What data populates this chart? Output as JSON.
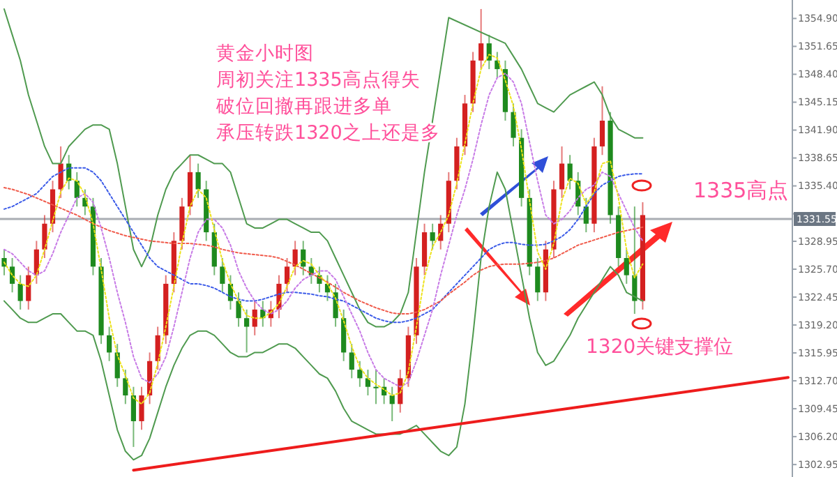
{
  "chart_data": {
    "type": "candlestick",
    "tick_labels": "y",
    "grid": false,
    "categories": [
      null,
      null,
      null,
      null,
      null,
      null,
      null,
      null,
      null,
      null,
      null,
      null,
      null,
      null,
      null,
      null,
      null,
      null,
      null,
      null,
      null,
      null,
      null,
      null,
      null,
      null,
      null,
      null,
      null,
      null,
      null,
      null,
      null,
      null,
      null,
      null,
      null,
      null,
      null,
      null,
      null,
      null,
      null,
      null,
      null,
      null,
      null,
      null,
      null,
      null,
      null,
      null,
      null,
      null,
      null,
      null,
      null,
      null,
      null,
      null,
      null,
      null,
      null,
      null,
      null,
      null,
      null,
      null,
      null,
      null,
      null,
      null,
      null,
      null,
      null,
      null,
      null,
      null,
      null,
      null,
      null,
      null,
      null,
      null,
      null,
      null,
      null,
      null,
      null,
      null,
      null,
      null,
      null,
      null,
      null,
      null,
      null,
      null
    ],
    "ohlc": [
      [
        1327,
        1328,
        1325,
        1326
      ],
      [
        1326,
        1327,
        1323,
        1324
      ],
      [
        1324,
        1325,
        1321,
        1322
      ],
      [
        1322,
        1326,
        1321,
        1325
      ],
      [
        1325,
        1329,
        1324,
        1328
      ],
      [
        1328,
        1332,
        1327,
        1331
      ],
      [
        1331,
        1336,
        1330,
        1335
      ],
      [
        1335,
        1340,
        1334,
        1338
      ],
      [
        1338,
        1339,
        1335,
        1336
      ],
      [
        1336,
        1337,
        1333,
        1334
      ],
      [
        1334,
        1335,
        1332,
        1333
      ],
      [
        1333,
        1334,
        1325,
        1326
      ],
      [
        1326,
        1327,
        1317,
        1318
      ],
      [
        1318,
        1319,
        1315,
        1316
      ],
      [
        1316,
        1317,
        1312,
        1313
      ],
      [
        1313,
        1314,
        1310,
        1311
      ],
      [
        1311,
        1312,
        1305,
        1308
      ],
      [
        1308,
        1312,
        1307,
        1311
      ],
      [
        1311,
        1316,
        1310,
        1315
      ],
      [
        1315,
        1319,
        1314,
        1318
      ],
      [
        1318,
        1325,
        1317,
        1324
      ],
      [
        1324,
        1330,
        1323,
        1329
      ],
      [
        1329,
        1334,
        1328,
        1333
      ],
      [
        1333,
        1339,
        1332,
        1337
      ],
      [
        1337,
        1338,
        1334,
        1335
      ],
      [
        1335,
        1336,
        1329,
        1330
      ],
      [
        1330,
        1331,
        1325,
        1326
      ],
      [
        1326,
        1327,
        1323,
        1324
      ],
      [
        1324,
        1325,
        1321,
        1322
      ],
      [
        1322,
        1323,
        1319,
        1320
      ],
      [
        1320,
        1321,
        1316,
        1319
      ],
      [
        1319,
        1322,
        1318,
        1321
      ],
      [
        1321,
        1322,
        1319,
        1320
      ],
      [
        1320,
        1322,
        1319,
        1321
      ],
      [
        1321,
        1325,
        1320,
        1324
      ],
      [
        1324,
        1327,
        1323,
        1326
      ],
      [
        1326,
        1329,
        1325,
        1328
      ],
      [
        1328,
        1329,
        1325,
        1326
      ],
      [
        1326,
        1327,
        1324,
        1325
      ],
      [
        1325,
        1326,
        1323,
        1324
      ],
      [
        1324,
        1325,
        1322,
        1323
      ],
      [
        1323,
        1324,
        1319,
        1320
      ],
      [
        1320,
        1321,
        1315,
        1316
      ],
      [
        1316,
        1317,
        1313,
        1314
      ],
      [
        1314,
        1315,
        1312,
        1313
      ],
      [
        1313,
        1314,
        1311,
        1312
      ],
      [
        1312,
        1314,
        1310,
        1312
      ],
      [
        1312,
        1313,
        1310,
        1311
      ],
      [
        1311,
        1312,
        1308,
        1310
      ],
      [
        1310,
        1314,
        1309,
        1313
      ],
      [
        1313,
        1319,
        1312,
        1318
      ],
      [
        1318,
        1327,
        1317,
        1326
      ],
      [
        1326,
        1331,
        1325,
        1330
      ],
      [
        1330,
        1331,
        1328,
        1329
      ],
      [
        1329,
        1332,
        1328,
        1331
      ],
      [
        1331,
        1337,
        1330,
        1336
      ],
      [
        1336,
        1341,
        1335,
        1340
      ],
      [
        1340,
        1346,
        1339,
        1345
      ],
      [
        1345,
        1351,
        1344,
        1350
      ],
      [
        1350,
        1356,
        1349,
        1352
      ],
      [
        1352,
        1353,
        1349,
        1350
      ],
      [
        1350,
        1351,
        1348,
        1349
      ],
      [
        1349,
        1350,
        1343,
        1344
      ],
      [
        1344,
        1345,
        1340,
        1341
      ],
      [
        1341,
        1342,
        1333,
        1334
      ],
      [
        1334,
        1335,
        1325,
        1326
      ],
      [
        1326,
        1327,
        1322,
        1323
      ],
      [
        1323,
        1329,
        1322,
        1328
      ],
      [
        1328,
        1336,
        1327,
        1335
      ],
      [
        1335,
        1340,
        1334,
        1338
      ],
      [
        1338,
        1339,
        1335,
        1336
      ],
      [
        1336,
        1337,
        1332,
        1333
      ],
      [
        1333,
        1334,
        1330,
        1331
      ],
      [
        1331,
        1341,
        1330,
        1340
      ],
      [
        1340,
        1347,
        1339,
        1343
      ],
      [
        1343,
        1344,
        1331,
        1332
      ],
      [
        1332,
        1333,
        1326,
        1327
      ],
      [
        1327,
        1328,
        1324,
        1325
      ],
      [
        1325,
        1333,
        1320.5,
        1322
      ],
      [
        1322,
        1333.5,
        1321,
        1332
      ],
      null,
      null,
      null,
      null,
      null,
      null,
      null,
      null,
      null,
      null,
      null,
      null,
      null,
      null,
      null,
      null,
      null,
      null
    ],
    "colors": [
      "#1e8a1e",
      "#1e8a1e",
      "#1e8a1e",
      "#d42020",
      "#d42020",
      "#d42020",
      "#d42020",
      "#d42020",
      "#1e8a1e",
      "#1e8a1e",
      "#1e8a1e",
      "#1e8a1e",
      "#1e8a1e",
      "#1e8a1e",
      "#1e8a1e",
      "#1e8a1e",
      "#1e8a1e",
      "#d42020",
      "#d42020",
      "#d42020",
      "#d42020",
      "#d42020",
      "#d42020",
      "#d42020",
      "#1e8a1e",
      "#1e8a1e",
      "#1e8a1e",
      "#1e8a1e",
      "#1e8a1e",
      "#1e8a1e",
      "#1e8a1e",
      "#d42020",
      "#1e8a1e",
      "#d42020",
      "#d42020",
      "#d42020",
      "#d42020",
      "#1e8a1e",
      "#1e8a1e",
      "#1e8a1e",
      "#1e8a1e",
      "#1e8a1e",
      "#1e8a1e",
      "#1e8a1e",
      "#1e8a1e",
      "#1e8a1e",
      "#1e8a1e",
      "#1e8a1e",
      "#1e8a1e",
      "#d42020",
      "#d42020",
      "#d42020",
      "#d42020",
      "#1e8a1e",
      "#d42020",
      "#d42020",
      "#d42020",
      "#d42020",
      "#d42020",
      "#d42020",
      "#1e8a1e",
      "#1e8a1e",
      "#1e8a1e",
      "#1e8a1e",
      "#1e8a1e",
      "#1e8a1e",
      "#1e8a1e",
      "#d42020",
      "#d42020",
      "#d42020",
      "#1e8a1e",
      "#1e8a1e",
      "#1e8a1e",
      "#d42020",
      "#d42020",
      "#1e8a1e",
      "#1e8a1e",
      "#1e8a1e",
      "#1e8a1e",
      "#d42020",
      null,
      null,
      null,
      null,
      null,
      null,
      null,
      null,
      null,
      null,
      null,
      null,
      null,
      null,
      null,
      null,
      null,
      null
    ],
    "series": [
      {
        "type": "line",
        "color": "#4f9a4f",
        "line_style": "solid",
        "values": [
          1356,
          1353,
          1350,
          1346,
          1343,
          1340,
          1338,
          1338,
          1340,
          1341,
          1342,
          1342.5,
          1342.5,
          1342,
          1338,
          1333,
          1328,
          1326,
          1328,
          1332,
          1335,
          1337,
          1338,
          1339,
          1339,
          1338.5,
          1338,
          1338,
          1337,
          1334,
          1331,
          1330.5,
          1330.5,
          1331,
          1331.5,
          1331.5,
          1331,
          1330.5,
          1330,
          1330,
          1329,
          1327,
          1325,
          1323,
          1321,
          1319.5,
          1319,
          1319,
          1319.5,
          1320.5,
          1323,
          1330,
          1337,
          1343,
          1349,
          1355,
          null,
          null,
          null,
          null,
          null,
          null,
          1352,
          1350.5,
          1349,
          1347,
          1345,
          1344.5,
          1344,
          1345,
          1346,
          1346.5,
          1347,
          1347.5,
          1346,
          1343.5,
          1342,
          1341.5,
          1341,
          1341,
          null,
          null,
          null,
          null,
          null,
          null,
          null,
          null,
          null,
          null,
          null,
          null,
          null,
          null,
          null,
          null,
          null,
          null
        ]
      },
      {
        "type": "line",
        "color": "#4f9a4f",
        "line_style": "solid",
        "values": [
          1322,
          1321,
          1320,
          1319.5,
          1319.5,
          1320,
          1320.5,
          1320.5,
          1319.5,
          1318.5,
          1318.5,
          1318,
          1315,
          1311,
          1307,
          1304.5,
          1303.5,
          1304,
          1306,
          1309,
          1312,
          1314.5,
          1316.5,
          1318,
          1318.5,
          1318.5,
          1318,
          1317,
          1316,
          1315.5,
          1315.5,
          1316,
          1316,
          1316.5,
          1317,
          1317,
          1316.5,
          1315.5,
          1314.5,
          1313.5,
          1313,
          1311.5,
          1309.5,
          1308,
          1307.5,
          1307,
          1306.5,
          1306.5,
          1306.5,
          1306.5,
          1307,
          1307.5,
          1306.5,
          1305.5,
          1304.5,
          1304,
          1305,
          1310,
          1318,
          1327,
          1333,
          1337,
          1335,
          1330,
          1325,
          1320,
          1316,
          1314.5,
          1315,
          1316.5,
          1318,
          1320,
          1321.5,
          1323,
          1324.5,
          1326,
          1325,
          1323,
          1322.5,
          1322,
          null,
          null,
          null,
          null,
          null,
          null,
          null,
          null,
          null,
          null,
          null,
          null,
          null,
          null,
          null,
          null,
          null,
          null
        ]
      },
      {
        "type": "line",
        "color": "#3a5ae8",
        "line_style": "dotted",
        "values": [
          1332.7,
          1333,
          1333.5,
          1334,
          1334.5,
          1335.5,
          1336.5,
          1337,
          1337.5,
          1337.5,
          1337.5,
          1337,
          1336,
          1334.5,
          1333,
          1331.5,
          1330,
          1328.5,
          1327,
          1326,
          1325.5,
          1325,
          1324.5,
          1324,
          1324,
          1323.8,
          1323.5,
          1323,
          1322.5,
          1322.2,
          1322,
          1322,
          1322.2,
          1322.5,
          1322.8,
          1323,
          1323,
          1322.9,
          1322.8,
          1322.6,
          1322.5,
          1322.2,
          1322,
          1321.5,
          1321,
          1320.5,
          1320,
          1319.7,
          1319.5,
          1319.5,
          1319.7,
          1320,
          1320.5,
          1321,
          1322,
          1323,
          1324,
          1325,
          1326,
          1327,
          1328,
          1328.5,
          1328.8,
          1328.8,
          1328.6,
          1328.5,
          1328.5,
          1328.6,
          1329,
          1329.5,
          1330.3,
          1331.5,
          1333,
          1334.5,
          1335.5,
          1336,
          1336.5,
          1336.7,
          1336.8,
          1336.8,
          null,
          null,
          null,
          null,
          null,
          null,
          null,
          null,
          null,
          null,
          null,
          null,
          null,
          null,
          null,
          null,
          null,
          null
        ]
      },
      {
        "type": "line",
        "color": "#f05a4a",
        "line_style": "dotted",
        "values": [
          1335.2,
          1335,
          1334.7,
          1334.4,
          1334,
          1333.6,
          1333.2,
          1332.8,
          1332.4,
          1332,
          1331.5,
          1331,
          1330.6,
          1330.2,
          1329.9,
          1329.6,
          1329.4,
          1329.2,
          1329,
          1328.9,
          1328.8,
          1328.7,
          1328.7,
          1328.7,
          1328.6,
          1328.5,
          1328.3,
          1328,
          1327.8,
          1327.6,
          1327.5,
          1327.4,
          1327.3,
          1327.2,
          1327,
          1326.6,
          1326.2,
          1325.7,
          1325.2,
          1324.7,
          1324.2,
          1323.6,
          1323,
          1322.5,
          1322,
          1321.6,
          1321.2,
          1320.9,
          1320.6,
          1320.5,
          1320.5,
          1320.7,
          1321,
          1321.5,
          1322,
          1322.8,
          1323.5,
          1324.2,
          1325,
          1325.6,
          1326,
          1326.2,
          1326.3,
          1326.3,
          1326.3,
          1326.4,
          1326.5,
          1326.7,
          1327,
          1327.5,
          1328,
          1328.5,
          1328.8,
          1329.1,
          1329.4,
          1329.7,
          1330,
          1330.2,
          1330.4,
          1330.6,
          null,
          null,
          null,
          null,
          null,
          null,
          null,
          null,
          null,
          null,
          null,
          null,
          null,
          null,
          null,
          null,
          null,
          null
        ]
      },
      {
        "type": "line",
        "color": "#c77ae6",
        "line_style": "dotted",
        "values": [
          1328,
          1327.5,
          1326.5,
          1325.5,
          1325,
          1325.5,
          1327.5,
          1330,
          1332,
          1334,
          1334.5,
          1333.5,
          1330.5,
          1327,
          1323,
          1319.5,
          1315.5,
          1313,
          1312.5,
          1313.5,
          1315.5,
          1319,
          1323,
          1327,
          1330,
          1331.5,
          1331.5,
          1330.5,
          1328.5,
          1325.5,
          1323.5,
          1322,
          1321,
          1320.5,
          1321,
          1322,
          1323.5,
          1324.5,
          1325,
          1325.5,
          1325.5,
          1324.5,
          1322.5,
          1320.5,
          1318.5,
          1316,
          1314,
          1313,
          1312.5,
          1312,
          1312.5,
          1315,
          1318,
          1321,
          1325,
          1328.5,
          1332,
          1335,
          1338.5,
          1342.5,
          1346,
          1348,
          1348.5,
          1347.5,
          1345,
          1340.5,
          1336,
          1332,
          1331,
          1331.5,
          1332.5,
          1334,
          1335,
          1335.5,
          1337,
          1336.5,
          1334.5,
          1332.5,
          1330.5,
          1329,
          null,
          null,
          null,
          null,
          null,
          null,
          null,
          null,
          null,
          null,
          null,
          null,
          null,
          null,
          null,
          null,
          null,
          null
        ]
      },
      {
        "type": "line",
        "color": "#ede21a",
        "line_style": "dotted",
        "values": [
          1326.5,
          1325,
          1324,
          1323.7,
          1325,
          1328,
          1331.3,
          1334.7,
          1336.3,
          1336,
          1334.3,
          1331,
          1325.7,
          1320,
          1315.7,
          1313.3,
          1310.7,
          1310,
          1311.3,
          1314.7,
          1319,
          1323.7,
          1328.7,
          1333,
          1335,
          1334,
          1330.3,
          1326.7,
          1324,
          1322,
          1320.3,
          1320,
          1320,
          1320.7,
          1321.7,
          1323.7,
          1326,
          1326.7,
          1326.3,
          1325,
          1324,
          1322.3,
          1319.7,
          1316.7,
          1314.3,
          1313,
          1312.3,
          1311.7,
          1311,
          1311.3,
          1313.7,
          1319,
          1324.7,
          1328.3,
          1330,
          1332,
          1335.7,
          1340.3,
          1345,
          1349,
          1350.7,
          1350.3,
          1347.7,
          1344.7,
          1339.7,
          1333.7,
          1327.7,
          1325.7,
          1328.7,
          1333.7,
          1336.3,
          1335.7,
          1333.3,
          1334.7,
          1338,
          1338.3,
          1334,
          1328,
          1324.7,
          1326.3,
          null,
          null,
          null,
          null,
          null,
          null,
          null,
          null,
          null,
          null,
          null,
          null,
          null,
          null,
          null,
          null,
          null,
          null
        ]
      },
      {
        "type": "line",
        "color": "#ee1c1c",
        "line_style": "solid",
        "values": [
          null,
          null,
          null,
          null,
          null,
          null,
          null,
          null,
          null,
          null,
          null,
          null,
          null,
          null,
          null,
          null,
          1302.3,
          null,
          null,
          null,
          null,
          null,
          null,
          null,
          null,
          null,
          null,
          null,
          null,
          null,
          null,
          null,
          null,
          null,
          null,
          null,
          null,
          null,
          null,
          null,
          null,
          null,
          null,
          null,
          null,
          null,
          null,
          null,
          null,
          null,
          null,
          null,
          null,
          null,
          null,
          null,
          null,
          null,
          null,
          null,
          null,
          null,
          null,
          null,
          null,
          null,
          null,
          null,
          null,
          null,
          null,
          null,
          null,
          null,
          null,
          null,
          null,
          null,
          null,
          null,
          null,
          null,
          null,
          null,
          null,
          null,
          null,
          null,
          null,
          null,
          null,
          null,
          null,
          null,
          null,
          null,
          null,
          1313.1
        ]
      }
    ],
    "ylim": [
      1301.5,
      1357.05
    ],
    "yticks": [
      {
        "value": 1354.9,
        "label": "1354.90"
      },
      {
        "value": 1351.65,
        "label": "1351.65"
      },
      {
        "value": 1348.4,
        "label": "1348.40"
      },
      {
        "value": 1345.15,
        "label": "1345.15"
      },
      {
        "value": 1341.9,
        "label": "1341.90"
      },
      {
        "value": 1338.65,
        "label": "1338.65"
      },
      {
        "value": 1335.4,
        "label": "1335.40"
      },
      {
        "value": 1332.15,
        "label": null
      },
      {
        "value": 1328.95,
        "label": "1328.95"
      },
      {
        "value": 1325.7,
        "label": "1325.70"
      },
      {
        "value": 1322.45,
        "label": "1322.45"
      },
      {
        "value": 1319.2,
        "label": "1319.20"
      },
      {
        "value": 1315.95,
        "label": "1315.95"
      },
      {
        "value": 1312.7,
        "label": "1312.70"
      },
      {
        "value": 1309.45,
        "label": "1309.45"
      },
      {
        "value": 1306.2,
        "label": "1306.20"
      },
      {
        "value": 1302.95,
        "label": "1302.95"
      }
    ],
    "ref_lines": [
      {
        "axis": "y",
        "value": 1331.55,
        "label": "1331.55",
        "color": "#a9adb3"
      }
    ],
    "annotations": [
      "黄金小时图",
      "周初关注1335高点得失",
      "破位回撤再跟进多单",
      "承压转跌1320之上还是多",
      "1335高点",
      "1320关键支撑位"
    ]
  }
}
